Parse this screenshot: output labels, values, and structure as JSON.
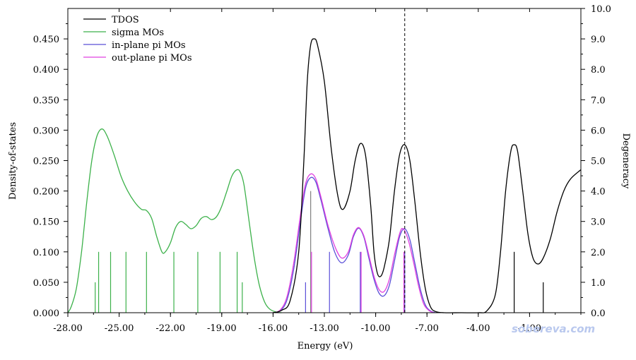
{
  "chart_data": {
    "type": "line",
    "xlabel": "Energy (eV)",
    "ylabel": "Density-of-states",
    "y2label": "Degeneracy",
    "xlim": [
      -28.0,
      2.0
    ],
    "ylim": [
      0.0,
      0.5
    ],
    "y2lim": [
      0.0,
      10.0
    ],
    "x_ticks": [
      -28.0,
      -25.0,
      -22.0,
      -19.0,
      -16.0,
      -13.0,
      -10.0,
      -7.0,
      -4.0,
      -1.0
    ],
    "x_tick_labels": [
      "-28.00",
      "-25.00",
      "-22.00",
      "-19.00",
      "-16.00",
      "-13.00",
      "-10.00",
      "-7.00",
      "-4.00",
      "-1.00"
    ],
    "y_ticks": [
      0.0,
      0.05,
      0.1,
      0.15,
      0.2,
      0.25,
      0.3,
      0.35,
      0.4,
      0.45
    ],
    "y_tick_labels": [
      "0.000",
      "0.050",
      "0.100",
      "0.150",
      "0.200",
      "0.250",
      "0.300",
      "0.350",
      "0.400",
      "0.450"
    ],
    "y2_ticks": [
      0,
      1,
      2,
      3,
      4,
      5,
      6,
      7,
      8,
      9,
      10
    ],
    "y2_tick_labels": [
      "0.0",
      "1.0",
      "2.0",
      "3.0",
      "4.0",
      "5.0",
      "6.0",
      "7.0",
      "8.0",
      "9.0",
      "10.0"
    ],
    "homo_energy": -8.3,
    "legend_position": "top-left",
    "grid": false,
    "series": [
      {
        "name": "TDOS",
        "color": "#000000",
        "points": [
          [
            -16.0,
            0.0
          ],
          [
            -15.5,
            0.004
          ],
          [
            -15.0,
            0.02
          ],
          [
            -14.5,
            0.1
          ],
          [
            -14.2,
            0.25
          ],
          [
            -14.0,
            0.38
          ],
          [
            -13.8,
            0.44
          ],
          [
            -13.6,
            0.45
          ],
          [
            -13.4,
            0.44
          ],
          [
            -13.0,
            0.38
          ],
          [
            -12.6,
            0.27
          ],
          [
            -12.2,
            0.19
          ],
          [
            -11.9,
            0.17
          ],
          [
            -11.5,
            0.2
          ],
          [
            -11.2,
            0.25
          ],
          [
            -10.9,
            0.278
          ],
          [
            -10.6,
            0.26
          ],
          [
            -10.3,
            0.18
          ],
          [
            -10.1,
            0.1
          ],
          [
            -9.9,
            0.065
          ],
          [
            -9.7,
            0.06
          ],
          [
            -9.5,
            0.075
          ],
          [
            -9.2,
            0.12
          ],
          [
            -8.9,
            0.2
          ],
          [
            -8.6,
            0.26
          ],
          [
            -8.3,
            0.276
          ],
          [
            -8.0,
            0.25
          ],
          [
            -7.7,
            0.18
          ],
          [
            -7.4,
            0.1
          ],
          [
            -7.1,
            0.04
          ],
          [
            -6.8,
            0.01
          ],
          [
            -6.5,
            0.002
          ],
          [
            -6.0,
            0.0
          ],
          [
            -5.0,
            0.0
          ],
          [
            -4.0,
            0.0
          ],
          [
            -3.5,
            0.003
          ],
          [
            -3.0,
            0.03
          ],
          [
            -2.7,
            0.1
          ],
          [
            -2.4,
            0.2
          ],
          [
            -2.1,
            0.265
          ],
          [
            -1.9,
            0.276
          ],
          [
            -1.7,
            0.265
          ],
          [
            -1.4,
            0.2
          ],
          [
            -1.1,
            0.13
          ],
          [
            -0.8,
            0.09
          ],
          [
            -0.5,
            0.08
          ],
          [
            -0.2,
            0.09
          ],
          [
            0.2,
            0.12
          ],
          [
            0.6,
            0.165
          ],
          [
            1.0,
            0.2
          ],
          [
            1.4,
            0.22
          ],
          [
            2.0,
            0.235
          ]
        ]
      },
      {
        "name": "sigma MOs",
        "color": "#3cb14a",
        "points": [
          [
            -28.0,
            0.0
          ],
          [
            -27.8,
            0.01
          ],
          [
            -27.5,
            0.04
          ],
          [
            -27.2,
            0.1
          ],
          [
            -26.9,
            0.18
          ],
          [
            -26.6,
            0.25
          ],
          [
            -26.3,
            0.29
          ],
          [
            -26.0,
            0.302
          ],
          [
            -25.7,
            0.29
          ],
          [
            -25.3,
            0.26
          ],
          [
            -24.9,
            0.225
          ],
          [
            -24.5,
            0.2
          ],
          [
            -24.1,
            0.182
          ],
          [
            -23.7,
            0.17
          ],
          [
            -23.4,
            0.168
          ],
          [
            -23.1,
            0.155
          ],
          [
            -22.8,
            0.125
          ],
          [
            -22.5,
            0.1
          ],
          [
            -22.3,
            0.1
          ],
          [
            -22.0,
            0.115
          ],
          [
            -21.7,
            0.14
          ],
          [
            -21.4,
            0.15
          ],
          [
            -21.1,
            0.145
          ],
          [
            -20.8,
            0.138
          ],
          [
            -20.5,
            0.143
          ],
          [
            -20.2,
            0.155
          ],
          [
            -19.9,
            0.158
          ],
          [
            -19.6,
            0.153
          ],
          [
            -19.3,
            0.158
          ],
          [
            -19.0,
            0.175
          ],
          [
            -18.7,
            0.2
          ],
          [
            -18.4,
            0.225
          ],
          [
            -18.1,
            0.235
          ],
          [
            -17.9,
            0.23
          ],
          [
            -17.7,
            0.21
          ],
          [
            -17.4,
            0.15
          ],
          [
            -17.1,
            0.09
          ],
          [
            -16.8,
            0.045
          ],
          [
            -16.5,
            0.018
          ],
          [
            -16.2,
            0.006
          ],
          [
            -15.8,
            0.001
          ],
          [
            -15.5,
            0.0
          ]
        ]
      },
      {
        "name": "in-plane pi MOs",
        "color": "#5a4fd8",
        "points": [
          [
            -16.0,
            0.0
          ],
          [
            -15.6,
            0.003
          ],
          [
            -15.2,
            0.02
          ],
          [
            -14.8,
            0.07
          ],
          [
            -14.4,
            0.15
          ],
          [
            -14.1,
            0.205
          ],
          [
            -13.8,
            0.222
          ],
          [
            -13.5,
            0.215
          ],
          [
            -13.2,
            0.185
          ],
          [
            -12.8,
            0.14
          ],
          [
            -12.4,
            0.1
          ],
          [
            -12.0,
            0.082
          ],
          [
            -11.6,
            0.095
          ],
          [
            -11.3,
            0.125
          ],
          [
            -11.0,
            0.139
          ],
          [
            -10.7,
            0.125
          ],
          [
            -10.4,
            0.09
          ],
          [
            -10.1,
            0.055
          ],
          [
            -9.8,
            0.032
          ],
          [
            -9.5,
            0.028
          ],
          [
            -9.2,
            0.045
          ],
          [
            -8.9,
            0.085
          ],
          [
            -8.6,
            0.125
          ],
          [
            -8.3,
            0.138
          ],
          [
            -8.0,
            0.12
          ],
          [
            -7.7,
            0.08
          ],
          [
            -7.4,
            0.04
          ],
          [
            -7.1,
            0.013
          ],
          [
            -6.8,
            0.003
          ],
          [
            -6.5,
            0.0
          ]
        ]
      },
      {
        "name": "out-plane pi MOs",
        "color": "#e040e0",
        "points": [
          [
            -16.0,
            0.0
          ],
          [
            -15.6,
            0.004
          ],
          [
            -15.2,
            0.025
          ],
          [
            -14.8,
            0.08
          ],
          [
            -14.4,
            0.16
          ],
          [
            -14.1,
            0.212
          ],
          [
            -13.8,
            0.228
          ],
          [
            -13.5,
            0.22
          ],
          [
            -13.2,
            0.19
          ],
          [
            -12.8,
            0.145
          ],
          [
            -12.4,
            0.11
          ],
          [
            -12.0,
            0.09
          ],
          [
            -11.6,
            0.1
          ],
          [
            -11.3,
            0.128
          ],
          [
            -11.0,
            0.14
          ],
          [
            -10.7,
            0.127
          ],
          [
            -10.4,
            0.095
          ],
          [
            -10.1,
            0.06
          ],
          [
            -9.8,
            0.038
          ],
          [
            -9.5,
            0.035
          ],
          [
            -9.2,
            0.055
          ],
          [
            -8.9,
            0.095
          ],
          [
            -8.6,
            0.13
          ],
          [
            -8.4,
            0.138
          ],
          [
            -8.1,
            0.12
          ],
          [
            -7.8,
            0.085
          ],
          [
            -7.5,
            0.045
          ],
          [
            -7.2,
            0.015
          ],
          [
            -6.9,
            0.004
          ],
          [
            -6.6,
            0.0
          ]
        ]
      }
    ],
    "degeneracy_sticks": [
      {
        "x": -26.4,
        "d": 1,
        "color": "#3cb14a"
      },
      {
        "x": -26.2,
        "d": 2,
        "color": "#3cb14a"
      },
      {
        "x": -25.5,
        "d": 2,
        "color": "#3cb14a"
      },
      {
        "x": -24.6,
        "d": 2,
        "color": "#3cb14a"
      },
      {
        "x": -23.4,
        "d": 2,
        "color": "#3cb14a"
      },
      {
        "x": -21.8,
        "d": 2,
        "color": "#3cb14a"
      },
      {
        "x": -20.4,
        "d": 2,
        "color": "#3cb14a"
      },
      {
        "x": -19.1,
        "d": 2,
        "color": "#3cb14a"
      },
      {
        "x": -18.1,
        "d": 2,
        "color": "#3cb14a"
      },
      {
        "x": -17.8,
        "d": 1,
        "color": "#3cb14a"
      },
      {
        "x": -14.1,
        "d": 1,
        "color": "#5a4fd8"
      },
      {
        "x": -13.8,
        "d": 4,
        "color": "#808080"
      },
      {
        "x": -13.75,
        "d": 2,
        "color": "#e040e0"
      },
      {
        "x": -12.7,
        "d": 2,
        "color": "#5a4fd8"
      },
      {
        "x": -10.9,
        "d": 2,
        "color": "#5a4fd8"
      },
      {
        "x": -10.85,
        "d": 2,
        "color": "#e040e0"
      },
      {
        "x": -8.35,
        "d": 2,
        "color": "#e040e0"
      },
      {
        "x": -8.3,
        "d": 2,
        "color": "#5a4fd8"
      },
      {
        "x": -1.9,
        "d": 2,
        "color": "#000000"
      },
      {
        "x": -0.2,
        "d": 1,
        "color": "#000000"
      }
    ]
  },
  "watermark": "sobereva.com"
}
